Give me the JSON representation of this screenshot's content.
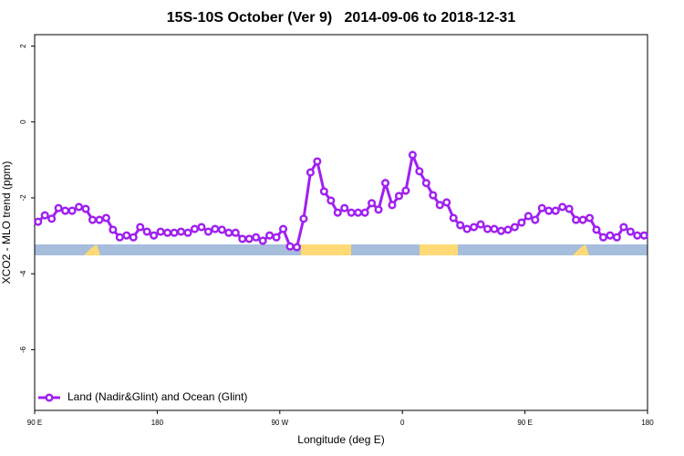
{
  "chart_data": {
    "type": "line",
    "title": "15S-10S October (Ver 9)   2014-09-06 to 2018-12-31",
    "xlabel": "Longitude (deg E)",
    "ylabel": "XCO2 - MLO trend (ppm)",
    "xlim": [
      90,
      540
    ],
    "xticks": [
      {
        "value": 90,
        "label": "90 E"
      },
      180,
      {
        "value": 270,
        "label": "90 W"
      },
      {
        "value": 360,
        "label": "0"
      },
      {
        "value": 450,
        "label": "90 E"
      },
      {
        "value": 540,
        "label": "180"
      }
    ],
    "ylim": [
      -7.6,
      2.3
    ],
    "yticks": [
      2,
      0,
      -2,
      -4,
      -6
    ],
    "legend": "bottom-left",
    "x": [
      92.5,
      97.5,
      102.5,
      107.5,
      112.5,
      117.5,
      122.5,
      127.5,
      132.5,
      137.5,
      142.5,
      147.5,
      152.5,
      157.5,
      162.5,
      167.5,
      172.5,
      177.5,
      182.5,
      187.5,
      192.5,
      197.5,
      202.5,
      207.5,
      212.5,
      217.5,
      222.5,
      227.5,
      232.5,
      237.5,
      242.5,
      247.5,
      252.5,
      257.5,
      262.5,
      267.5,
      272.5,
      277.5,
      282.5,
      287.5,
      292.5,
      297.5,
      302.5,
      307.5,
      312.5,
      317.5,
      322.5,
      327.5,
      332.5,
      337.5,
      342.5,
      347.5,
      352.5,
      357.5,
      362.5,
      367.5,
      372.5,
      377.5,
      382.5,
      387.5,
      392.5,
      397.5,
      402.5,
      407.5,
      412.5,
      417.5,
      422.5,
      427.5,
      432.5,
      437.5,
      442.5,
      447.5,
      452.5,
      457.5,
      462.5,
      467.5,
      472.5,
      477.5,
      482.5,
      487.5,
      492.5,
      497.5,
      502.5,
      507.5,
      512.5,
      517.5,
      522.5,
      527.5,
      532.5,
      537.5
    ],
    "series": [
      {
        "name": "Land (Nadir&Glint) and Ocean (Glint)",
        "color": "#a020f0",
        "values": [
          -2.63,
          -2.46,
          -2.55,
          -2.27,
          -2.34,
          -2.34,
          -2.24,
          -2.29,
          -2.58,
          -2.58,
          -2.53,
          -2.84,
          -3.04,
          -2.99,
          -3.04,
          -2.77,
          -2.89,
          -2.99,
          -2.89,
          -2.92,
          -2.92,
          -2.89,
          -2.92,
          -2.82,
          -2.77,
          -2.89,
          -2.82,
          -2.84,
          -2.92,
          -2.92,
          -3.08,
          -3.08,
          -3.04,
          -3.13,
          -2.99,
          -3.04,
          -2.82,
          -3.28,
          -3.3,
          -2.55,
          -1.33,
          -1.04,
          -1.83,
          -2.07,
          -2.39,
          -2.27,
          -2.39,
          -2.39,
          -2.39,
          -2.14,
          -2.31,
          -1.61,
          -2.19,
          -1.95,
          -1.81,
          -0.87,
          -1.3,
          -1.61,
          -1.93,
          -2.19,
          -2.12,
          -2.53,
          -2.72,
          -2.82,
          -2.77,
          -2.7,
          -2.82,
          -2.82,
          -2.87,
          -2.84,
          -2.77,
          -2.65,
          -2.48,
          -2.58,
          -2.27,
          -2.34,
          -2.34,
          -2.24,
          -2.29,
          -2.58,
          -2.58,
          -2.53,
          -2.84,
          -3.04,
          -2.99,
          -3.04,
          -2.77,
          -2.89,
          -2.99,
          -2.99
        ]
      }
    ]
  }
}
